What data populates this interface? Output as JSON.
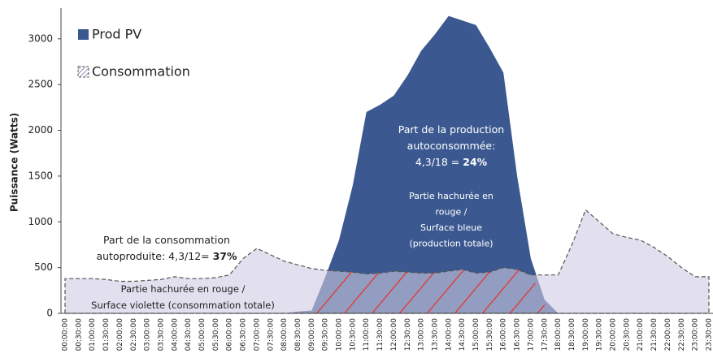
{
  "chart_data": {
    "type": "area",
    "y_label": "Puissance (Watts)",
    "categories": [
      "00:00:00",
      "00:30:00",
      "01:00:00",
      "01:30:00",
      "02:00:00",
      "02:30:00",
      "03:00:00",
      "03:30:00",
      "04:00:00",
      "04:30:00",
      "05:00:00",
      "05:30:00",
      "06:00:00",
      "06:30:00",
      "07:00:00",
      "07:30:00",
      "08:00:00",
      "08:30:00",
      "09:00:00",
      "09:30:00",
      "10:00:00",
      "10:30:00",
      "11:00:00",
      "11:30:00",
      "12:00:00",
      "12:30:00",
      "13:00:00",
      "13:30:00",
      "14:00:00",
      "14:30:00",
      "15:00:00",
      "15:30:00",
      "16:00:00",
      "16:30:00",
      "17:00:00",
      "17:30:00",
      "18:00:00",
      "18:30:00",
      "19:00:00",
      "19:30:00",
      "20:00:00",
      "20:30:00",
      "21:00:00",
      "21:30:00",
      "22:00:00",
      "22:30:00",
      "23:00:00",
      "23:30:00"
    ],
    "series": [
      {
        "name": "Prod PV",
        "color": "#3b5990",
        "values": [
          0,
          0,
          0,
          0,
          0,
          0,
          0,
          0,
          0,
          0,
          0,
          0,
          0,
          0,
          0,
          0,
          0,
          20,
          30,
          400,
          800,
          1400,
          2200,
          2280,
          2380,
          2600,
          2870,
          3050,
          3250,
          3200,
          3150,
          2900,
          2630,
          1500,
          600,
          150,
          0,
          0,
          0,
          0,
          0,
          0,
          0,
          0,
          0,
          0,
          0,
          0
        ]
      },
      {
        "name": "Consommation",
        "color": "#cfc9e3",
        "values": [
          380,
          380,
          380,
          370,
          350,
          350,
          360,
          370,
          400,
          380,
          380,
          390,
          420,
          600,
          710,
          640,
          570,
          530,
          490,
          470,
          460,
          450,
          430,
          440,
          460,
          450,
          440,
          440,
          460,
          480,
          440,
          450,
          500,
          480,
          420,
          420,
          420,
          750,
          1130,
          1000,
          870,
          830,
          800,
          720,
          620,
          500,
          400,
          400
        ]
      }
    ],
    "ylim": [
      0,
      3300
    ],
    "yticks": [
      0,
      500,
      1000,
      1500,
      2000,
      2500,
      3000
    ],
    "annotations": [
      {
        "color": "#ffffff",
        "lines": [
          {
            "text": "Part de la production"
          },
          {
            "text": "autoconsommée:"
          },
          {
            "text": "4,3/18 = ",
            "bold": "24%"
          }
        ]
      },
      {
        "color": "#ffffff",
        "lines": [
          {
            "text": "Partie hachurée en"
          },
          {
            "text": "rouge /"
          },
          {
            "text": "Surface bleue"
          },
          {
            "text": "(production totale)"
          }
        ]
      },
      {
        "color": "#222222",
        "lines": [
          {
            "text": "Part de la consommation"
          },
          {
            "text": "autoproduite: 4,3/12= ",
            "bold": "37%"
          }
        ]
      },
      {
        "color": "#222222",
        "lines": [
          {
            "text": "Partie hachurée en rouge /"
          },
          {
            "text": "Surface violette (consommation totale)"
          }
        ]
      }
    ]
  }
}
